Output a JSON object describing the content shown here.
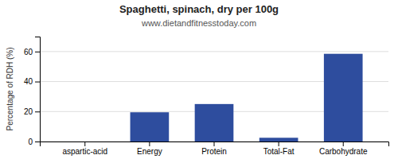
{
  "chart_data": {
    "type": "bar",
    "title": "Spaghetti, spinach, dry per 100g",
    "subtitle": "www.dietandfitnesstoday.com",
    "categories": [
      "aspartic-acid",
      "Energy",
      "Protein",
      "Total-Fat",
      "Carbohydrate"
    ],
    "values": [
      0.0,
      19.5,
      25.0,
      2.5,
      58.5
    ],
    "color": "#2e4d9e",
    "ylabel": "Percentage of RDH (%)",
    "ylim": [
      0,
      70
    ],
    "yticks": [
      0,
      20,
      40,
      60
    ],
    "grid": true
  }
}
